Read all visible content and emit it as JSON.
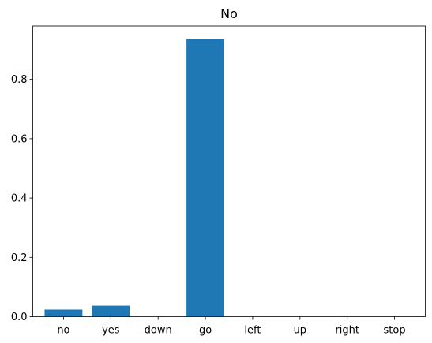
{
  "colors": {
    "bar": "#1f77b4",
    "axis": "#000000",
    "background": "#ffffff"
  },
  "chart_data": {
    "type": "bar",
    "title": "No",
    "xlabel": "",
    "ylabel": "",
    "categories": [
      "no",
      "yes",
      "down",
      "go",
      "left",
      "up",
      "right",
      "stop"
    ],
    "values": [
      0.024,
      0.037,
      0.0,
      0.935,
      0.0,
      0.0,
      0.0,
      0.0
    ],
    "ylim": [
      0,
      0.98
    ],
    "yticks": [
      0.0,
      0.2,
      0.4,
      0.6,
      0.8
    ],
    "ytick_labels": [
      "0.0",
      "0.2",
      "0.4",
      "0.6",
      "0.8"
    ],
    "grid": false,
    "legend": "none"
  }
}
